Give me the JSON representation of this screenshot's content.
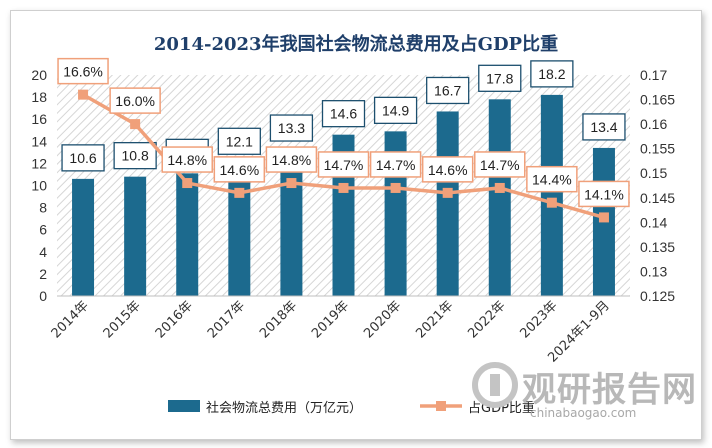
{
  "chart_data": {
    "type": "bar",
    "title": "2014-2023年我国社会物流总费用及占GDP比重",
    "categories": [
      "2014年",
      "2015年",
      "2016年",
      "2017年",
      "2018年",
      "2019年",
      "2020年",
      "2021年",
      "2022年",
      "2023年",
      "2024年1-9月"
    ],
    "series": [
      {
        "name": "社会物流总费用（万亿元）",
        "type": "bar",
        "axis": "left",
        "values": [
          10.6,
          10.8,
          11.1,
          12.1,
          13.3,
          14.6,
          14.9,
          16.7,
          17.8,
          18.2,
          13.4
        ],
        "labels": [
          "10.6",
          "10.8",
          "11.1",
          "12.1",
          "13.3",
          "14.6",
          "14.9",
          "16.7",
          "17.8",
          "18.2",
          "13.4"
        ],
        "color": "#1c6a8e"
      },
      {
        "name": "占GDP比重",
        "type": "line",
        "axis": "right",
        "values": [
          0.166,
          0.16,
          0.148,
          0.146,
          0.148,
          0.147,
          0.147,
          0.146,
          0.147,
          0.144,
          0.141
        ],
        "labels": [
          "16.6%",
          "16.0%",
          "14.8%",
          "14.6%",
          "14.8%",
          "14.7%",
          "14.7%",
          "14.6%",
          "14.7%",
          "14.4%",
          "14.1%"
        ],
        "color": "#f0a07a"
      }
    ],
    "y_left": {
      "lim": [
        0,
        20
      ],
      "ticks": [
        "0",
        "2",
        "4",
        "6",
        "8",
        "10",
        "12",
        "14",
        "16",
        "18",
        "20"
      ]
    },
    "y_right": {
      "lim": [
        0.125,
        0.17
      ],
      "ticks": [
        "0.125",
        "0.13",
        "0.135",
        "0.14",
        "0.145",
        "0.15",
        "0.155",
        "0.16",
        "0.165",
        "0.17"
      ]
    },
    "legend_position": "bottom",
    "grid": false
  },
  "watermark": {
    "brand": "观研报告网",
    "site": "chinabaogao.com"
  }
}
